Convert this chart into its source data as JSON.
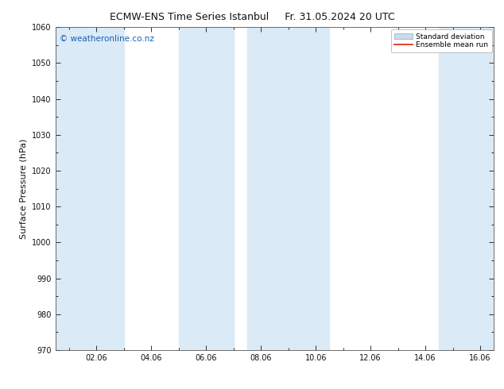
{
  "title_left": "ECMW-ENS Time Series Istanbul",
  "title_right": "Fr. 31.05.2024 20 UTC",
  "ylabel": "Surface Pressure (hPa)",
  "ylim": [
    970,
    1060
  ],
  "yticks": [
    970,
    980,
    990,
    1000,
    1010,
    1020,
    1030,
    1040,
    1050,
    1060
  ],
  "xtick_labels": [
    "02.06",
    "04.06",
    "06.06",
    "08.06",
    "10.06",
    "12.06",
    "14.06",
    "16.06"
  ],
  "xtick_positions": [
    2,
    4,
    6,
    8,
    10,
    12,
    14,
    16
  ],
  "xlim": [
    0.5,
    16.5
  ],
  "shaded_bands": [
    {
      "x_start": 0.5,
      "x_end": 3.0
    },
    {
      "x_start": 5.0,
      "x_end": 7.0
    },
    {
      "x_start": 7.5,
      "x_end": 10.5
    },
    {
      "x_start": 14.5,
      "x_end": 16.5
    }
  ],
  "band_color": "#daeaf6",
  "background_color": "#ffffff",
  "watermark_text": "© weatheronline.co.nz",
  "watermark_color": "#1a5fb4",
  "watermark_fontsize": 7.5,
  "title_fontsize": 9,
  "tick_fontsize": 7,
  "ylabel_fontsize": 8,
  "legend_label_std": "Standard deviation",
  "legend_label_mean": "Ensemble mean run",
  "legend_std_facecolor": "#c8dcea",
  "legend_std_edgecolor": "#8aaabb",
  "legend_mean_color": "#dd2200",
  "tick_color": "#111111",
  "spine_color": "#555555"
}
